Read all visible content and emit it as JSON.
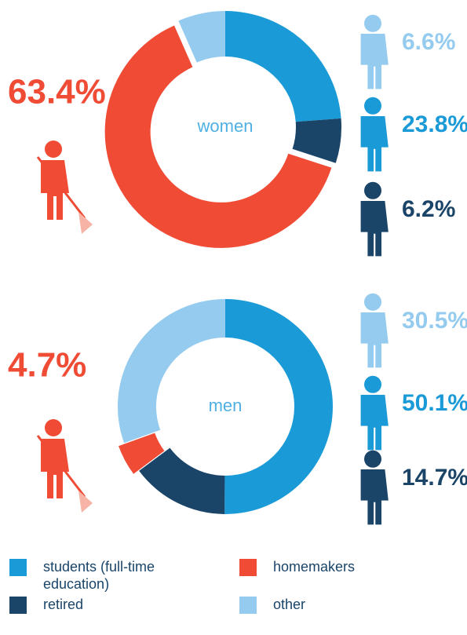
{
  "chart_data": [
    {
      "type": "donut",
      "center_label": "women",
      "categories": [
        "students (full-time education)",
        "retired",
        "homemakers",
        "other"
      ],
      "values": [
        23.8,
        6.2,
        63.4,
        6.6
      ],
      "value_labels": [
        "23.8%",
        "6.2%",
        "63.4%",
        "6.6%"
      ],
      "colors": [
        "#1a9ad6",
        "#1a4468",
        "#ef4b35",
        "#94cbef"
      ],
      "explode": [
        false,
        false,
        true,
        false
      ]
    },
    {
      "type": "donut",
      "center_label": "men",
      "categories": [
        "students (full-time education)",
        "retired",
        "homemakers",
        "other"
      ],
      "values": [
        50.1,
        14.7,
        4.7,
        30.5
      ],
      "value_labels": [
        "50.1%",
        "14.7%",
        "4.7%",
        "30.5%"
      ],
      "colors": [
        "#1a9ad6",
        "#1a4468",
        "#ef4b35",
        "#94cbef"
      ],
      "explode": [
        false,
        false,
        true,
        false
      ]
    }
  ]
}
